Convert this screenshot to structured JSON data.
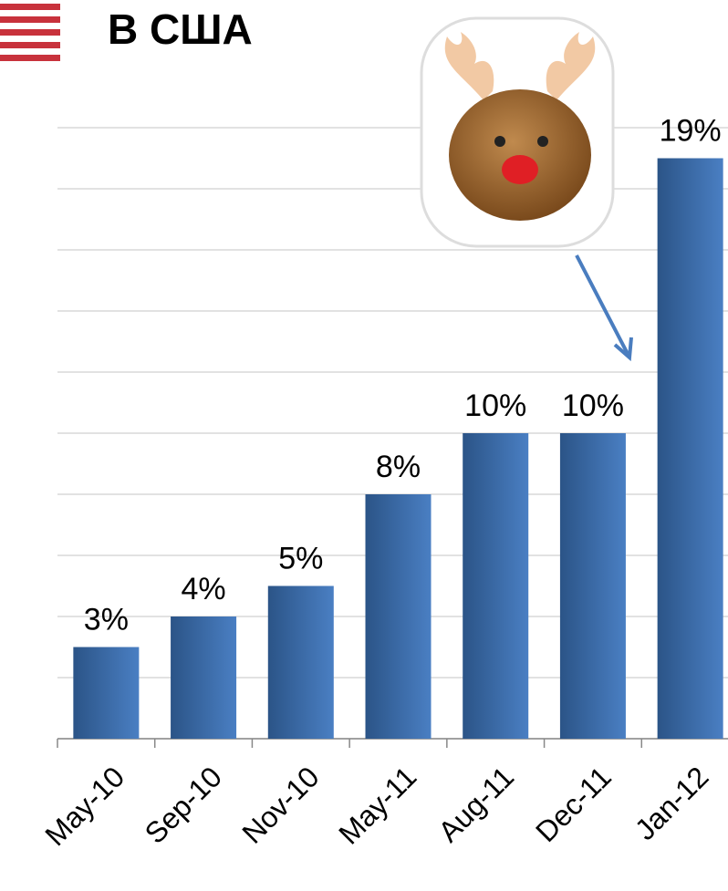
{
  "chart_data": {
    "type": "bar",
    "title": "В США",
    "categories": [
      "May-10",
      "Sep-10",
      "Nov-10",
      "May-11",
      "Aug-11",
      "Dec-11",
      "Jan-12"
    ],
    "values": [
      3,
      4,
      5,
      8,
      10,
      10,
      19
    ],
    "value_labels": [
      "3%",
      "4%",
      "5%",
      "8%",
      "10%",
      "10%",
      "19%"
    ],
    "color": "#3d6fb0",
    "ylim": [
      0,
      20
    ],
    "yticks": [
      0,
      2,
      4,
      6,
      8,
      10,
      12,
      14,
      16,
      18,
      20
    ],
    "grid": true
  }
}
